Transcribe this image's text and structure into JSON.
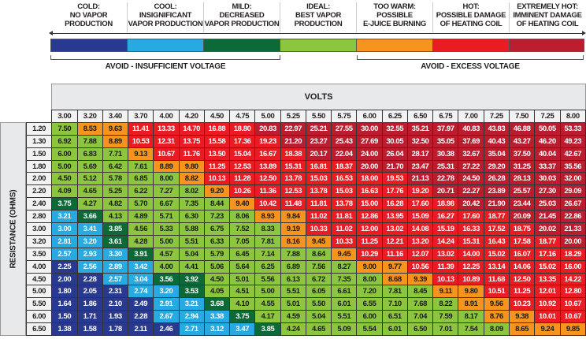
{
  "legend": {
    "zones": [
      {
        "code": "N",
        "title": "COLD:",
        "lines": [
          "NO VAPOR",
          "PRODUCTION"
        ],
        "color": "#283a90"
      },
      {
        "code": "B",
        "title": "COOL:",
        "lines": [
          "INSIGNIFICANT",
          "VAPOR PRODUCTION"
        ],
        "color": "#27a9e1"
      },
      {
        "code": "M",
        "title": "MILD:",
        "lines": [
          "DECREASED",
          "VAPOR PRODUCTION"
        ],
        "color": "#0b6a38"
      },
      {
        "code": "G",
        "title": "IDEAL:",
        "lines": [
          "BEST VAPOR",
          "PRODUCTION"
        ],
        "color": "#8cc63f"
      },
      {
        "code": "O",
        "title": "TOO WARM:",
        "lines": [
          "POSSIBLE",
          "E-JUICE BURNING"
        ],
        "color": "#f7941d"
      },
      {
        "code": "R",
        "title": "HOT:",
        "lines": [
          "POSSIBLE DAMAGE",
          "OF HEATING COIL"
        ],
        "color": "#e91c24"
      },
      {
        "code": "D",
        "title": "EXTREMELY HOT:",
        "lines": [
          "IMMINENT DAMAGE",
          "OF HEATING COIL"
        ],
        "color": "#b91d2e"
      }
    ],
    "avoid_low": "AVOID - INSUFFICIENT VOLTAGE",
    "avoid_high": "AVOID - EXCESS VOLTAGE"
  },
  "chart_data": {
    "type": "heatmap",
    "title": "",
    "xlabel": "VOLTS",
    "ylabel": "RESISTANCE (OHMS)",
    "columns": [
      "3.00",
      "3.20",
      "3.40",
      "3.70",
      "4.00",
      "4.20",
      "4.50",
      "4.75",
      "5.00",
      "5.25",
      "5.50",
      "5.75",
      "6.00",
      "6.25",
      "6.50",
      "6.75",
      "7.00",
      "7.25",
      "7.50",
      "7.25",
      "8.00"
    ],
    "rows": [
      {
        "label": "1.20",
        "zones": "GOORRRRRDDDDDDDDDDDDD",
        "values": [
          "7.50",
          "8.53",
          "9.63",
          "11.41",
          "13.33",
          "14.70",
          "16.88",
          "18.80",
          "20.83",
          "22.97",
          "25.21",
          "27.55",
          "30.00",
          "32.55",
          "35.21",
          "37.97",
          "40.83",
          "43.83",
          "46.88",
          "50.05",
          "53.33"
        ]
      },
      {
        "label": "1.30",
        "zones": "GGORRRRRRDDDDDDDDDDDD",
        "values": [
          "6.92",
          "7.88",
          "8.89",
          "10.53",
          "12.31",
          "13.75",
          "15.58",
          "17.36",
          "19.23",
          "21.20",
          "23.27",
          "25.43",
          "27.69",
          "30.05",
          "32.50",
          "35.05",
          "37.69",
          "40.43",
          "43.27",
          "46.20",
          "49.23"
        ]
      },
      {
        "label": "1.50",
        "zones": "GGGORRRRRRDDDDDDDDDDD",
        "values": [
          "6.00",
          "6.83",
          "7.71",
          "9.13",
          "10.67",
          "11.76",
          "13.50",
          "15.04",
          "16.67",
          "18.38",
          "20.17",
          "22.04",
          "24.00",
          "26.04",
          "28.17",
          "30.38",
          "32.67",
          "35.04",
          "37.50",
          "40.04",
          "42.67"
        ]
      },
      {
        "label": "1.80",
        "zones": "GGGGOORRRRRRDDDDDDDDD",
        "values": [
          "5.00",
          "5.69",
          "6.42",
          "7.61",
          "8.89",
          "9.80",
          "11.25",
          "12.53",
          "13.89",
          "15.31",
          "16.81",
          "18.37",
          "20.00",
          "21.70",
          "23.47",
          "25.31",
          "27.22",
          "29.20",
          "31.25",
          "33.37",
          "35.56"
        ]
      },
      {
        "label": "2.00",
        "zones": "GGGGGORRRRRRRRDDDDDDD",
        "values": [
          "4.50",
          "5.12",
          "5.78",
          "6.85",
          "8.00",
          "8.82",
          "10.13",
          "11.28",
          "12.50",
          "13.78",
          "15.03",
          "16.53",
          "18.00",
          "19.53",
          "21.13",
          "22.78",
          "24.50",
          "26.28",
          "28.13",
          "30.03",
          "32.00"
        ]
      },
      {
        "label": "2.20",
        "zones": "GGGGGGORRRRRRRRDDDDDD",
        "values": [
          "4.09",
          "4.65",
          "5.25",
          "6.22",
          "7.27",
          "8.02",
          "9.20",
          "10.26",
          "11.36",
          "12.53",
          "13.78",
          "15.03",
          "16.63",
          "17.76",
          "19.20",
          "20.71",
          "22.27",
          "23.89",
          "25.57",
          "27.30",
          "29.09"
        ]
      },
      {
        "label": "2.40",
        "zones": "MGGGGGGORRRRRRRRDDDDD",
        "values": [
          "3.75",
          "4.27",
          "4.82",
          "5.70",
          "6.67",
          "7.35",
          "8.44",
          "9.40",
          "10.42",
          "11.48",
          "11.81",
          "13.78",
          "15.00",
          "16.28",
          "17.60",
          "18.98",
          "20.42",
          "21.90",
          "23.44",
          "25.03",
          "26.67"
        ]
      },
      {
        "label": "2.80",
        "zones": "BMGGGGGGOORRRRRRRRDDD",
        "values": [
          "3.21",
          "3.66",
          "4.13",
          "4.89",
          "5.71",
          "6.30",
          "7.23",
          "8.06",
          "8.93",
          "9.84",
          "11.02",
          "11.81",
          "12.86",
          "13.95",
          "15.09",
          "16.27",
          "17.60",
          "18.77",
          "20.09",
          "21.45",
          "22.86"
        ]
      },
      {
        "label": "3.00",
        "zones": "BBMGGGGGGORRRRRRRRRDD",
        "values": [
          "3.00",
          "3.41",
          "3.85",
          "4.56",
          "5.33",
          "5.88",
          "6.75",
          "7.52",
          "8.33",
          "9.19",
          "10.33",
          "11.02",
          "12.00",
          "13.02",
          "14.08",
          "15.19",
          "16.33",
          "17.52",
          "18.75",
          "20.02",
          "21.33"
        ]
      },
      {
        "label": "3.20",
        "zones": "BBMGGGGGGOORRRRRRRRRD",
        "values": [
          "2.81",
          "3.20",
          "3.61",
          "4.28",
          "5.00",
          "5.51",
          "6.33",
          "7.05",
          "7.81",
          "8.16",
          "9.45",
          "10.33",
          "11.25",
          "12.21",
          "13.20",
          "14.24",
          "15.31",
          "16.43",
          "17.58",
          "18.77",
          "20.00"
        ]
      },
      {
        "label": "3.50",
        "zones": "BBBMGGGGGGGORRRRRRRRR",
        "values": [
          "2.57",
          "2.93",
          "3.30",
          "3.91",
          "4.57",
          "5.04",
          "5.79",
          "6.45",
          "7.14",
          "7.88",
          "8.64",
          "9.45",
          "10.29",
          "11.16",
          "12.07",
          "13.02",
          "14.00",
          "15.02",
          "16.07",
          "17.16",
          "18.29"
        ]
      },
      {
        "label": "4.00",
        "zones": "NBBBGGGGGGGGOORRRRRRR",
        "values": [
          "2.25",
          "2.56",
          "2.89",
          "3.42",
          "4.00",
          "4.41",
          "5.06",
          "5.64",
          "6.25",
          "6.89",
          "7.56",
          "8.27",
          "9.00",
          "9.77",
          "10.56",
          "11.39",
          "12.25",
          "13.14",
          "14.06",
          "15.02",
          "16.00"
        ]
      },
      {
        "label": "4.50",
        "zones": "NNBBMMGGGGGGGOORRRRRR",
        "values": [
          "2.00",
          "2.28",
          "2.57",
          "3.04",
          "3.56",
          "3.92",
          "4.50",
          "5.01",
          "5.56",
          "6.13",
          "6.72",
          "7.35",
          "8.00",
          "8.68",
          "9.39",
          "10.13",
          "10.89",
          "11.68",
          "12.50",
          "13.35",
          "14.22"
        ]
      },
      {
        "label": "5.00",
        "zones": "NNNBBMGGGGGGGGGOORRRR",
        "values": [
          "1.80",
          "2.05",
          "2.31",
          "2.74",
          "3.20",
          "3.53",
          "4.05",
          "4.51",
          "5.00",
          "5.51",
          "6.05",
          "6.61",
          "7.20",
          "7.81",
          "8.45",
          "9.11",
          "9.80",
          "10.51",
          "11.25",
          "12.01",
          "12.80"
        ]
      },
      {
        "label": "5.50",
        "zones": "NNNNBBMGGGGGGGGGOORRR",
        "values": [
          "1.64",
          "1.86",
          "2.10",
          "2.49",
          "2.91",
          "3.21",
          "3.68",
          "4.10",
          "4.55",
          "5.01",
          "5.50",
          "6.01",
          "6.55",
          "7.10",
          "7.68",
          "8.22",
          "8.91",
          "9.56",
          "10.23",
          "10.92",
          "10.67"
        ]
      },
      {
        "label": "6.00",
        "zones": "NNNNBBBMGGGGGGGGGOORR",
        "values": [
          "1.50",
          "1.71",
          "1.93",
          "2.28",
          "2.67",
          "2.94",
          "3.38",
          "3.75",
          "4.17",
          "4.59",
          "5.04",
          "5.51",
          "6.00",
          "6.51",
          "7.04",
          "7.59",
          "8.17",
          "8.76",
          "9.38",
          "10.01",
          "10.67"
        ]
      },
      {
        "label": "6.50",
        "zones": "NNNNNBBBMGGGGGGGGGOOO",
        "values": [
          "1.38",
          "1.58",
          "1.78",
          "2.11",
          "2.46",
          "2.71",
          "3.12",
          "3.47",
          "3.85",
          "4.24",
          "4.65",
          "5.09",
          "5.54",
          "6.01",
          "6.50",
          "7.01",
          "7.54",
          "8.09",
          "8.65",
          "9.24",
          "9.85"
        ]
      }
    ]
  }
}
